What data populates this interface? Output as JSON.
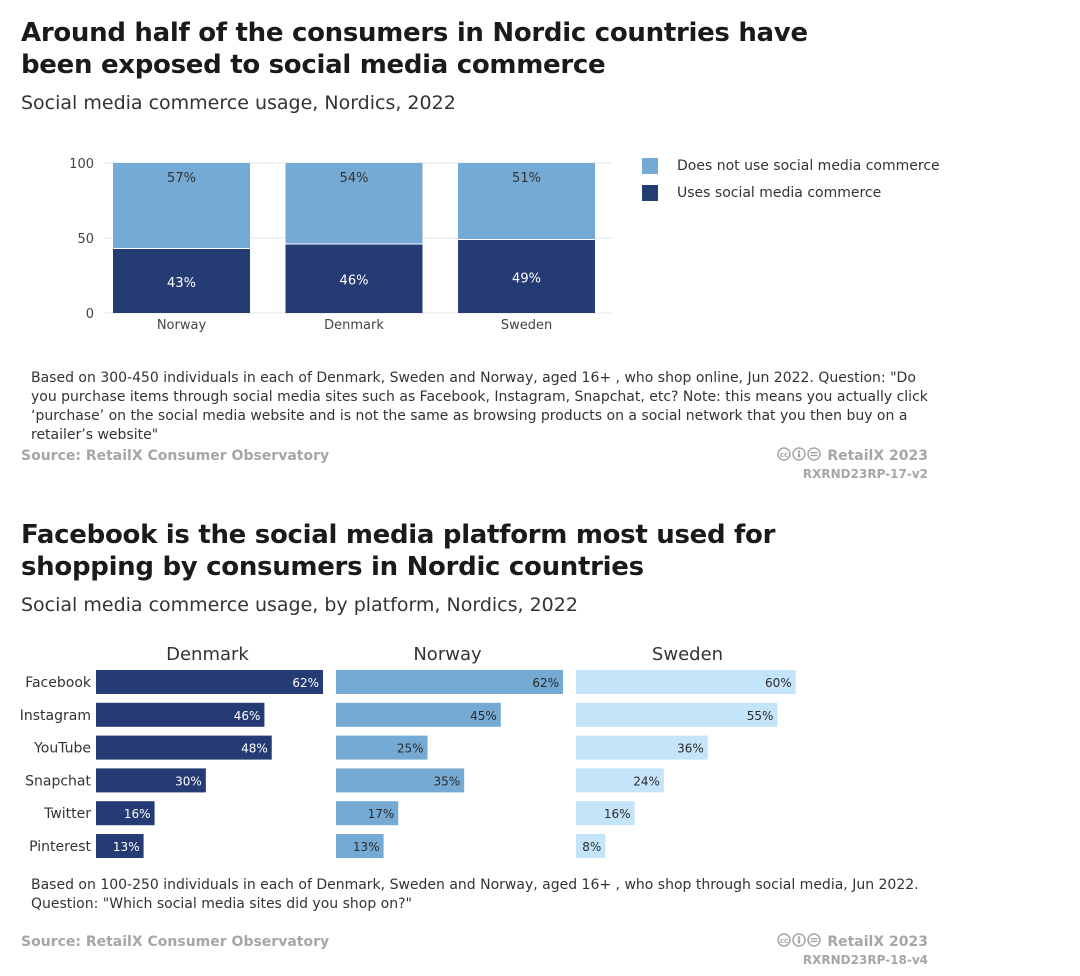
{
  "chart1": {
    "title": "Around half of the consumers in Nordic countries have been exposed to social media commerce",
    "subtitle": "Social media commerce usage, Nordics, 2022",
    "note": "Based on 300-450 individuals in each of Denmark, Sweden and Norway, aged 16+ , who shop online, Jun 2022. Question: \"Do you purchase items through social media sites such as Facebook, Instagram, Snapchat, etc? Note: this means you actually click ‘purchase’ on the social media website and is not the same as browsing products on a social network that you then buy on a retailer’s website\"",
    "source": "Source: RetailX Consumer Observatory",
    "credit": "RetailX 2023",
    "code": "RXRND23RP-17-v2"
  },
  "chart2": {
    "title": "Facebook is the social media platform most used for shopping by consumers in Nordic countries",
    "subtitle": "Social media commerce usage, by platform, Nordics, 2022",
    "note": "Based on 100-250 individuals in each of Denmark, Sweden and Norway, aged 16+ , who shop through social media, Jun 2022. Question: \"Which social media sites did you shop on?\"",
    "source": "Source: RetailX Consumer Observatory",
    "credit": "RetailX 2023",
    "code": "RXRND23RP-18-v4"
  },
  "chart_data": [
    {
      "type": "bar",
      "stacked": true,
      "title": "Around half of the consumers in Nordic countries have been exposed to social media commerce",
      "subtitle": "Social media commerce usage, Nordics, 2022",
      "categories": [
        "Norway",
        "Denmark",
        "Sweden"
      ],
      "series": [
        {
          "name": "Uses social media commerce",
          "values": [
            43,
            46,
            49
          ],
          "labels": [
            "43%",
            "46%",
            "49%"
          ],
          "color": "#243b73"
        },
        {
          "name": "Does not use social media commerce",
          "values": [
            57,
            54,
            51
          ],
          "labels": [
            "57%",
            "54%",
            "51%"
          ],
          "color": "#74aad3"
        }
      ],
      "yticks": [
        "0",
        "50",
        "100"
      ],
      "ylim": [
        0,
        100
      ],
      "legend": [
        "Does not use social media commerce",
        "Uses social media commerce"
      ],
      "legend_position": "right"
    },
    {
      "type": "bar",
      "orientation": "horizontal",
      "title": "Facebook is the social media platform most used for shopping by consumers in Nordic countries",
      "subtitle": "Social media commerce usage, by platform, Nordics, 2022",
      "categories": [
        "Facebook",
        "Instagram",
        "YouTube",
        "Snapchat",
        "Twitter",
        "Pinterest"
      ],
      "series": [
        {
          "name": "Denmark",
          "values": [
            62,
            46,
            48,
            30,
            16,
            13
          ],
          "labels": [
            "62%",
            "46%",
            "48%",
            "30%",
            "16%",
            "13%"
          ],
          "color": "#243b73",
          "label_color": "#ffffff"
        },
        {
          "name": "Norway",
          "values": [
            62,
            45,
            25,
            35,
            17,
            13
          ],
          "labels": [
            "62%",
            "45%",
            "25%",
            "35%",
            "17%",
            "13%"
          ],
          "color": "#74aad3",
          "label_color": "#2b2b2b"
        },
        {
          "name": "Sweden",
          "values": [
            60,
            55,
            36,
            24,
            16,
            8
          ],
          "labels": [
            "60%",
            "55%",
            "36%",
            "24%",
            "16%",
            "8%"
          ],
          "color": "#c4e5f9",
          "label_color": "#2b2b2b"
        }
      ],
      "xlim": [
        0,
        62
      ]
    }
  ]
}
